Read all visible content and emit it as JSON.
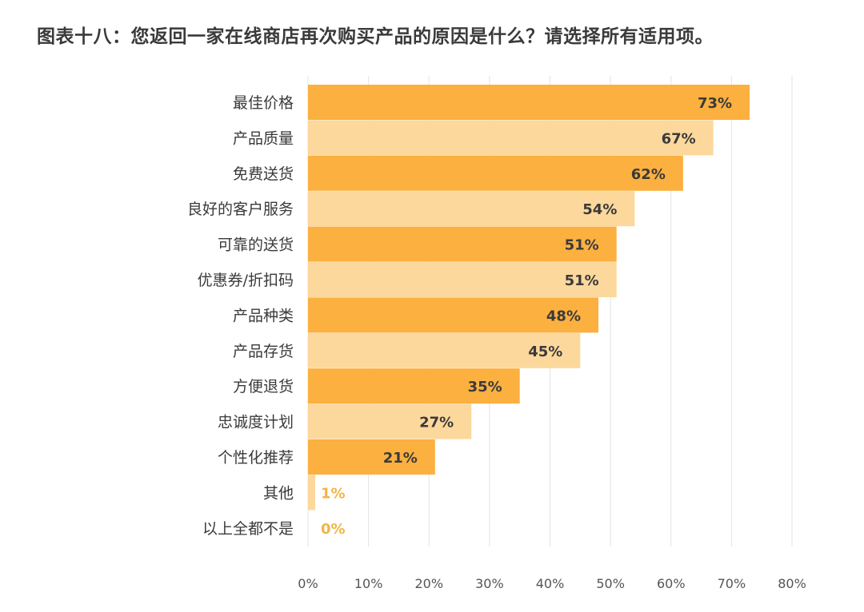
{
  "chart_data": {
    "type": "bar",
    "orientation": "horizontal",
    "title": "图表十八：您返回一家在线商店再次购买产品的原因是什么？请选择所有适用项。",
    "categories": [
      "最佳价格",
      "产品质量",
      "免费送货",
      "良好的客户服务",
      "可靠的送货",
      "优惠券/折扣码",
      "产品种类",
      "产品存货",
      "方便退货",
      "忠诚度计划",
      "个性化推荐",
      "其他",
      "以上全都不是"
    ],
    "values": [
      73,
      67,
      62,
      54,
      51,
      51,
      48,
      45,
      35,
      27,
      21,
      1,
      0
    ],
    "value_labels": [
      "73%",
      "67%",
      "62%",
      "54%",
      "51%",
      "51%",
      "48%",
      "45%",
      "35%",
      "27%",
      "21%",
      "1%",
      "0%"
    ],
    "xlim": [
      0,
      80
    ],
    "x_ticks": [
      0,
      10,
      20,
      30,
      40,
      50,
      60,
      70,
      80
    ],
    "x_tick_labels": [
      "0%",
      "10%",
      "20%",
      "30%",
      "40%",
      "50%",
      "60%",
      "70%",
      "80%"
    ],
    "xlabel": "",
    "ylabel": "",
    "grid": true,
    "legend": "none",
    "colors": {
      "bar_dark": "#fbb040",
      "bar_light": "#fdd89c",
      "value_text": "#3a3a3a",
      "value_text_small": "#f2b544"
    }
  }
}
